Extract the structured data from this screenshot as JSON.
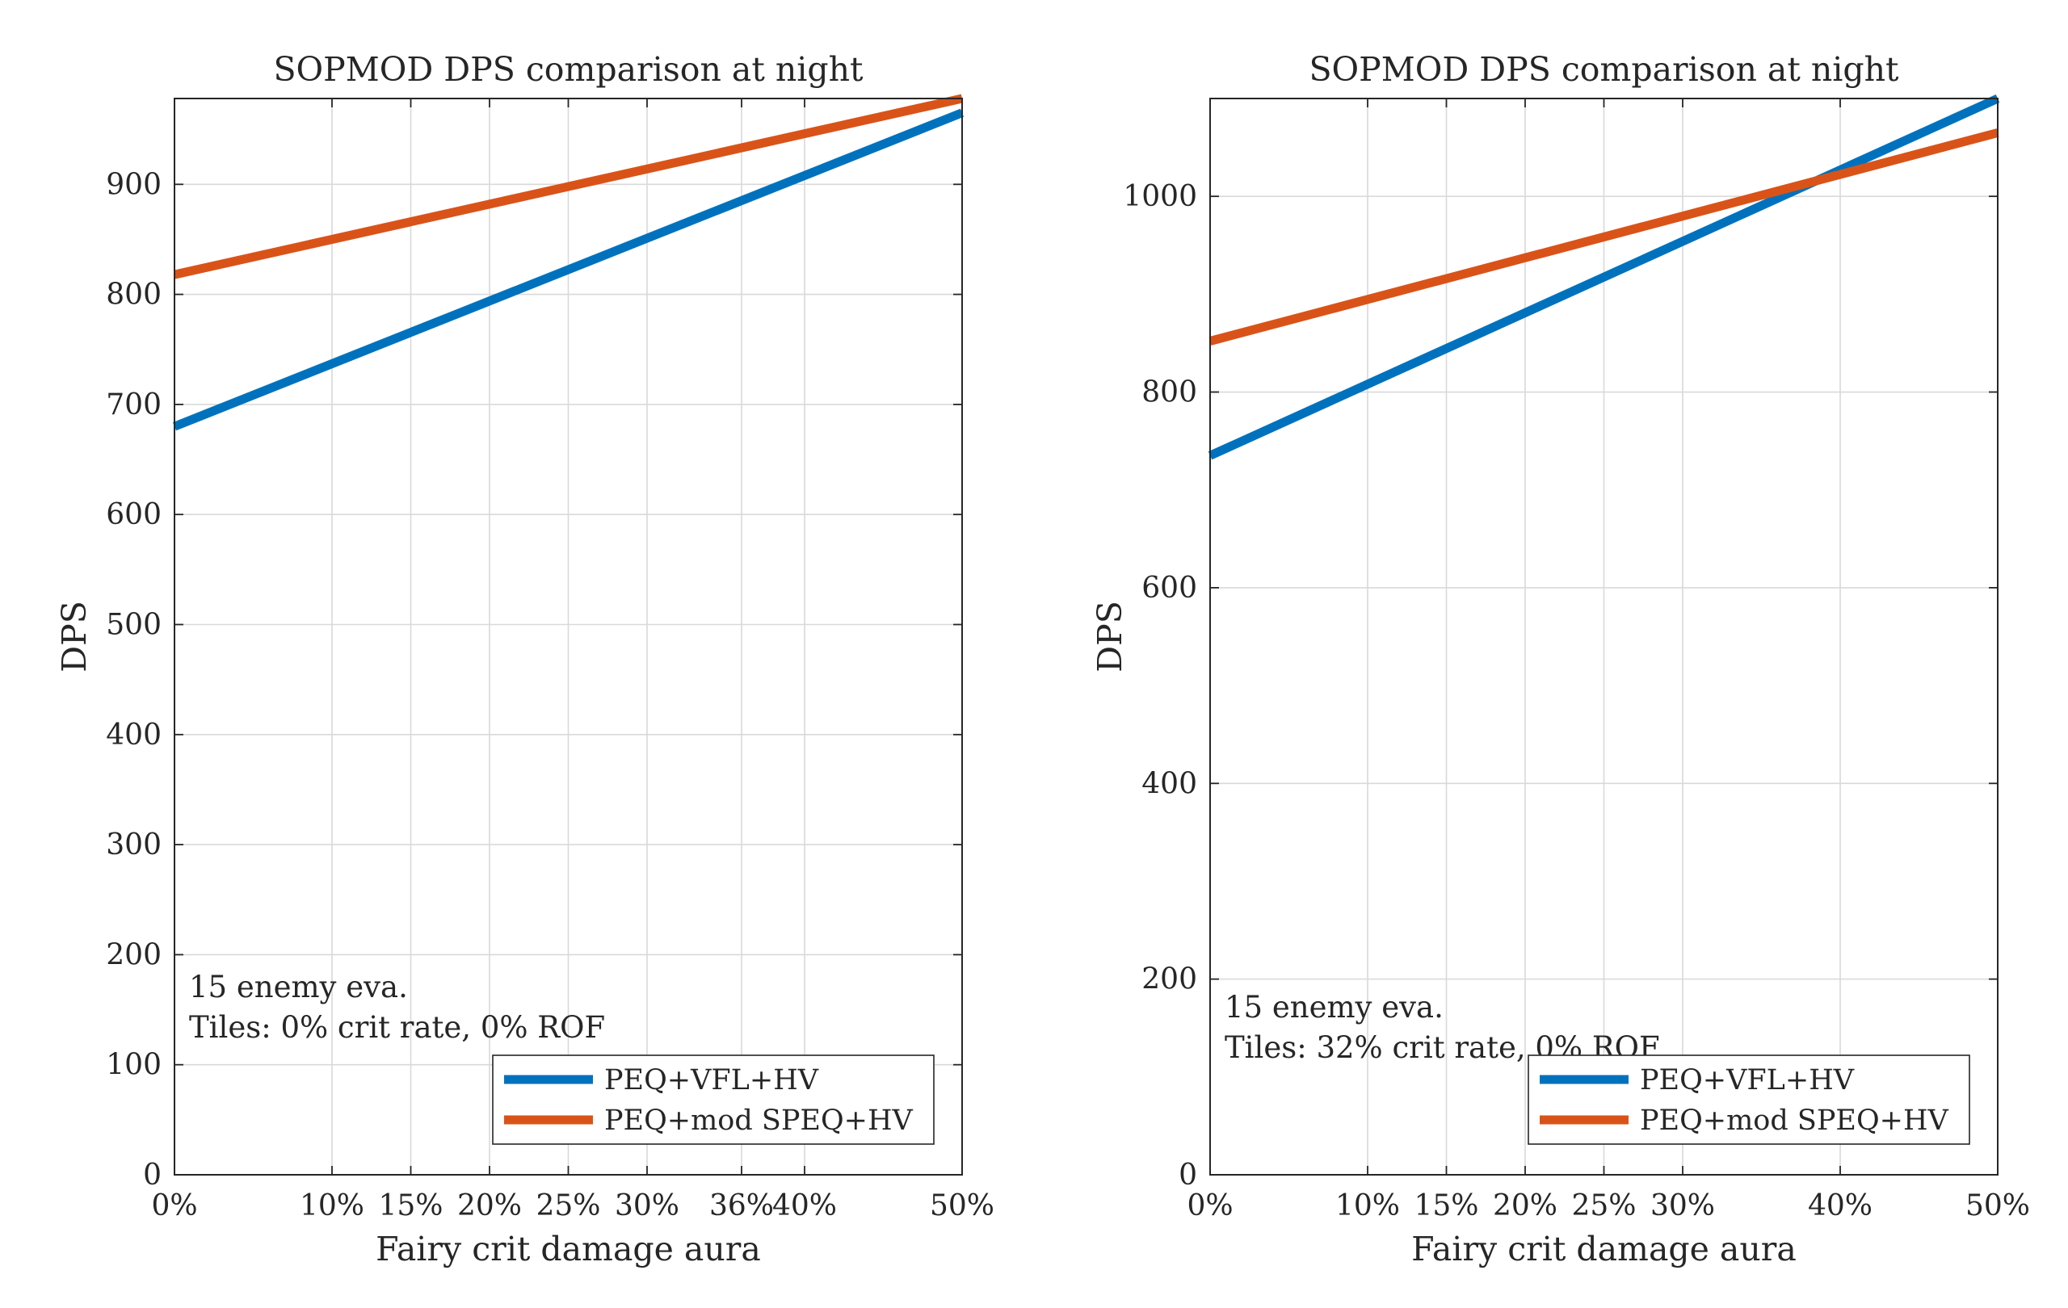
{
  "chart_data": [
    {
      "type": "line",
      "title": "SOPMOD DPS comparison at night",
      "xlabel": "Fairy crit damage aura",
      "ylabel": "DPS",
      "xlim": [
        0,
        50
      ],
      "ylim": [
        0,
        978
      ],
      "x_ticks": [
        {
          "value": 0,
          "label": "0%"
        },
        {
          "value": 10,
          "label": "10%"
        },
        {
          "value": 15,
          "label": "15%"
        },
        {
          "value": 20,
          "label": "20%"
        },
        {
          "value": 25,
          "label": "25%"
        },
        {
          "value": 30,
          "label": "30%"
        },
        {
          "value": 36,
          "label": "36%"
        },
        {
          "value": 40,
          "label": "40%"
        },
        {
          "value": 50,
          "label": "50%"
        }
      ],
      "y_ticks": [
        0,
        100,
        200,
        300,
        400,
        500,
        600,
        700,
        800,
        900
      ],
      "grid": true,
      "legend_position": "bottom-right",
      "annotation": [
        "15 enemy eva.",
        "Tiles: 0% crit rate, 0% ROF"
      ],
      "series": [
        {
          "name": "PEQ+VFL+HV",
          "color": "#0072bd",
          "x": [
            0,
            50
          ],
          "y": [
            680,
            965
          ]
        },
        {
          "name": "PEQ+mod SPEQ+HV",
          "color": "#d95319",
          "x": [
            0,
            50
          ],
          "y": [
            818,
            978
          ]
        }
      ]
    },
    {
      "type": "line",
      "title": "SOPMOD DPS comparison at night",
      "xlabel": "Fairy crit damage aura",
      "ylabel": "DPS",
      "xlim": [
        0,
        50
      ],
      "ylim": [
        0,
        1100
      ],
      "x_ticks": [
        {
          "value": 0,
          "label": "0%"
        },
        {
          "value": 10,
          "label": "10%"
        },
        {
          "value": 15,
          "label": "15%"
        },
        {
          "value": 20,
          "label": "20%"
        },
        {
          "value": 25,
          "label": "25%"
        },
        {
          "value": 30,
          "label": "30%"
        },
        {
          "value": 40,
          "label": "40%"
        },
        {
          "value": 50,
          "label": "50%"
        }
      ],
      "y_ticks": [
        0,
        200,
        400,
        600,
        800,
        1000
      ],
      "grid": true,
      "legend_position": "bottom-right",
      "annotation": [
        "15 enemy eva.",
        "Tiles: 32% crit rate, 0% ROF"
      ],
      "series": [
        {
          "name": "PEQ+VFL+HV",
          "color": "#0072bd",
          "x": [
            0,
            50
          ],
          "y": [
            735,
            1100
          ]
        },
        {
          "name": "PEQ+mod SPEQ+HV",
          "color": "#d95319",
          "x": [
            0,
            50
          ],
          "y": [
            852,
            1065
          ]
        }
      ]
    }
  ]
}
